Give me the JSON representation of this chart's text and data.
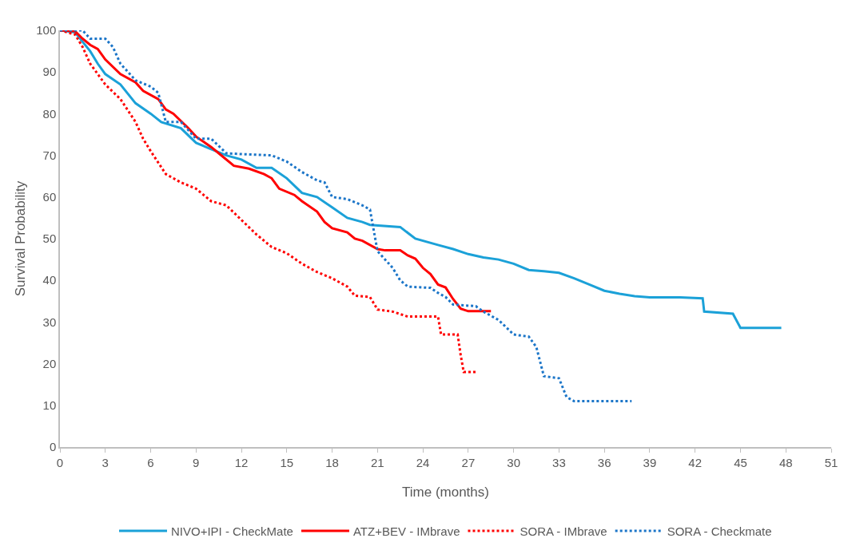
{
  "chart_data": {
    "type": "line",
    "xlabel": "Time (months)",
    "ylabel": "Survival Probability",
    "xlim": [
      0,
      51
    ],
    "xticks": [
      0,
      3,
      6,
      9,
      12,
      15,
      18,
      21,
      24,
      27,
      30,
      33,
      36,
      39,
      42,
      45,
      48,
      51
    ],
    "ylim": [
      0,
      100
    ],
    "yticks": [
      0,
      10,
      20,
      30,
      40,
      50,
      60,
      70,
      80,
      90,
      100
    ],
    "grid": false,
    "legend": "bottom",
    "marker": "none",
    "series": [
      {
        "name": "NIVO+IPI - CheckMate",
        "color": "#1ba1d8",
        "line_style": "solid",
        "x": [
          0,
          1,
          2,
          2.5,
          3,
          4,
          5,
          6,
          6.7,
          8,
          9,
          10,
          11,
          12,
          13,
          14,
          15,
          16,
          17,
          18,
          19,
          20,
          20.5,
          22.5,
          23.5,
          25,
          26,
          27,
          28,
          29,
          30,
          31,
          32,
          33,
          34,
          35,
          36,
          37,
          38,
          39,
          41,
          42.5,
          42.6,
          44.5,
          45,
          47.7
        ],
        "values": [
          100,
          99.5,
          95,
          92,
          89.5,
          87,
          82.5,
          80,
          78,
          76.5,
          73,
          71.5,
          70,
          69,
          67,
          67,
          64.5,
          61,
          60,
          57.5,
          55,
          54,
          53.3,
          52.8,
          50,
          48.5,
          47.5,
          46.3,
          45.5,
          45,
          44,
          42.5,
          42.2,
          41.8,
          40.5,
          39,
          37.5,
          36.8,
          36.2,
          35.9,
          35.9,
          35.7,
          32.5,
          32,
          28.6,
          28.6
        ]
      },
      {
        "name": "ATZ+BEV - IMbrave",
        "color": "#ff0000",
        "line_style": "solid",
        "x": [
          0,
          1,
          1.5,
          2,
          2.5,
          3,
          4,
          5,
          5.5,
          6.5,
          7,
          7.5,
          8.5,
          9,
          10,
          10.5,
          11.5,
          12.5,
          13.5,
          14,
          14.5,
          15.5,
          16,
          17,
          17.5,
          18,
          19,
          19.5,
          20,
          21,
          21.5,
          22.5,
          23,
          23.5,
          24,
          24.5,
          25,
          25.5,
          26,
          26.5,
          27,
          28.5
        ],
        "values": [
          100,
          99.8,
          98,
          96.5,
          95.5,
          93,
          89.5,
          87.5,
          85.5,
          83.5,
          81,
          80,
          76.5,
          74.5,
          72,
          70.5,
          67.5,
          66.8,
          65.5,
          64.5,
          62,
          60.5,
          59,
          56.5,
          54,
          52.5,
          51.5,
          50,
          49.5,
          47.5,
          47.2,
          47.2,
          46,
          45.2,
          43,
          41.5,
          39,
          38.3,
          35.5,
          33.2,
          32.6,
          32.6
        ]
      },
      {
        "name": "SORA - IMbrave",
        "color": "#ff0000",
        "line_style": "dotted",
        "x": [
          0,
          1,
          1.5,
          2,
          3,
          4,
          5,
          5.5,
          6,
          7,
          8,
          9,
          10,
          11,
          12,
          13,
          14,
          15,
          16,
          17,
          18,
          19,
          19.5,
          20.5,
          21,
          22,
          23,
          25,
          25.2,
          26.3,
          26.5,
          26.7,
          27.6
        ],
        "values": [
          100,
          99,
          96,
          92,
          87,
          83.5,
          78,
          74,
          71,
          65.5,
          63.5,
          62,
          59,
          58,
          54.5,
          51,
          48,
          46.5,
          44,
          42,
          40.5,
          38.5,
          36.3,
          36,
          33,
          32.5,
          31.3,
          31.3,
          27,
          27,
          22,
          18,
          18
        ]
      },
      {
        "name": "SORA - Checkmate",
        "color": "#1b75c8",
        "line_style": "dotted",
        "x": [
          0,
          1.5,
          2,
          3,
          3.5,
          4,
          5,
          6,
          6.5,
          7,
          8,
          8.5,
          9,
          10,
          11,
          12,
          14,
          15,
          16,
          17,
          17.5,
          18,
          19,
          20,
          20.5,
          21,
          22,
          22.5,
          23,
          24.5,
          25,
          25.5,
          26,
          27.5,
          28,
          29,
          30,
          31,
          31.5,
          32,
          33,
          33.5,
          34,
          37.8
        ],
        "values": [
          100,
          100,
          98,
          98,
          96,
          92,
          88,
          86.5,
          85,
          78,
          78,
          76,
          74,
          74,
          70.5,
          70.3,
          70,
          68.5,
          66,
          64,
          63.5,
          60,
          59.5,
          58,
          57,
          47,
          43,
          40,
          38.5,
          38.2,
          37,
          36,
          34.2,
          33.8,
          32.5,
          30.5,
          27,
          26.5,
          24,
          17,
          16.5,
          12,
          11,
          11
        ]
      }
    ]
  }
}
